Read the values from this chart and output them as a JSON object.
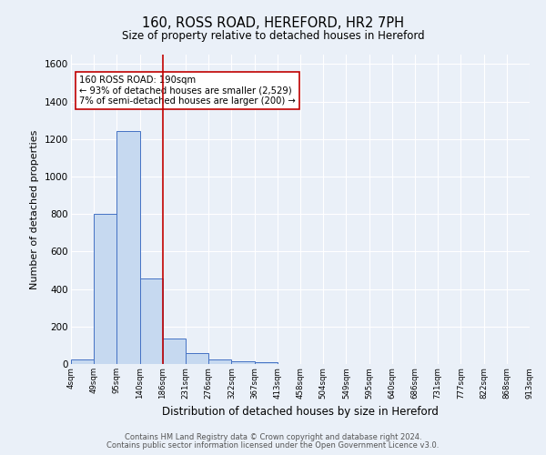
{
  "title1": "160, ROSS ROAD, HEREFORD, HR2 7PH",
  "title2": "Size of property relative to detached houses in Hereford",
  "xlabel": "Distribution of detached houses by size in Hereford",
  "ylabel": "Number of detached properties",
  "footnote1": "Contains HM Land Registry data © Crown copyright and database right 2024.",
  "footnote2": "Contains public sector information licensed under the Open Government Licence v3.0.",
  "bin_labels": [
    "4sqm",
    "49sqm",
    "95sqm",
    "140sqm",
    "186sqm",
    "231sqm",
    "276sqm",
    "322sqm",
    "367sqm",
    "413sqm",
    "458sqm",
    "504sqm",
    "549sqm",
    "595sqm",
    "640sqm",
    "686sqm",
    "731sqm",
    "777sqm",
    "822sqm",
    "868sqm",
    "913sqm"
  ],
  "bar_values": [
    25,
    800,
    1240,
    455,
    135,
    60,
    25,
    15,
    12,
    0,
    0,
    0,
    0,
    0,
    0,
    0,
    0,
    0,
    0,
    0
  ],
  "bar_color": "#c6d9f0",
  "bar_edge_color": "#4472c4",
  "background_color": "#eaf0f8",
  "grid_color": "#ffffff",
  "vline_x": 4,
  "vline_color": "#c00000",
  "annotation_text": "160 ROSS ROAD: 190sqm\n← 93% of detached houses are smaller (2,529)\n7% of semi-detached houses are larger (200) →",
  "annotation_box_color": "#ffffff",
  "annotation_box_edge_color": "#c00000",
  "ylim": [
    0,
    1650
  ],
  "yticks": [
    0,
    200,
    400,
    600,
    800,
    1000,
    1200,
    1400,
    1600
  ]
}
